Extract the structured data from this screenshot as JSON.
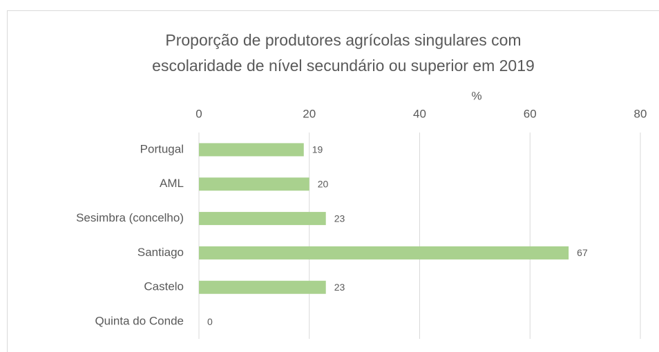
{
  "chart_data": {
    "type": "bar",
    "orientation": "horizontal",
    "title": [
      "Proporção de produtores agrícolas singulares com",
      "escolaridade de nível secundário ou superior em 2019"
    ],
    "x_label": "%",
    "categories": [
      "Portugal",
      "AML",
      "Sesimbra (concelho)",
      "Santiago",
      "Castelo",
      "Quinta do Conde"
    ],
    "values": [
      19,
      20,
      23,
      67,
      23,
      0
    ],
    "color": "#a9d18e",
    "xlim": [
      0,
      80
    ],
    "xticks": [
      0,
      20,
      40,
      60,
      80
    ],
    "grid": true
  }
}
